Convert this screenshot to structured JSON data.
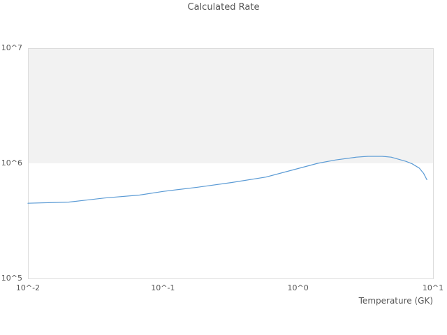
{
  "colors": {
    "line": "#5b9bd5",
    "band": "#f2f2f2",
    "border": "#dcdcdc",
    "text": "#555555",
    "background": "#ffffff"
  },
  "chart_data": {
    "type": "line",
    "title": "Calculated Rate",
    "xlabel": "Temperature (GK)",
    "ylabel": "",
    "x_scale": "log",
    "y_scale": "log",
    "xlim": [
      0.01,
      10
    ],
    "ylim": [
      100000,
      10000000
    ],
    "x_ticks": [
      0.01,
      0.1,
      1,
      10
    ],
    "x_tick_labels": [
      "10^-2",
      "10^-1",
      "10^0",
      "10^1"
    ],
    "y_ticks": [
      100000,
      1000000,
      10000000
    ],
    "y_tick_labels": [
      "10^5",
      "10^6",
      "10^7"
    ],
    "grid": "off",
    "legend": false,
    "shaded_band": {
      "axis": "y",
      "from": 1000000,
      "to": 10000000
    },
    "series": [
      {
        "name": "Calculated Rate",
        "x": [
          0.01,
          0.02,
          0.037,
          0.067,
          0.1,
          0.18,
          0.32,
          0.58,
          1.0,
          1.4,
          1.9,
          2.7,
          3.3,
          4.2,
          4.9,
          6.3,
          7.0,
          7.9,
          8.5,
          9.0
        ],
        "y": [
          450000,
          460000,
          500000,
          530000,
          570000,
          620000,
          680000,
          760000,
          900000,
          1000000,
          1070000,
          1130000,
          1150000,
          1150000,
          1130000,
          1040000,
          990000,
          910000,
          820000,
          720000
        ]
      }
    ]
  }
}
